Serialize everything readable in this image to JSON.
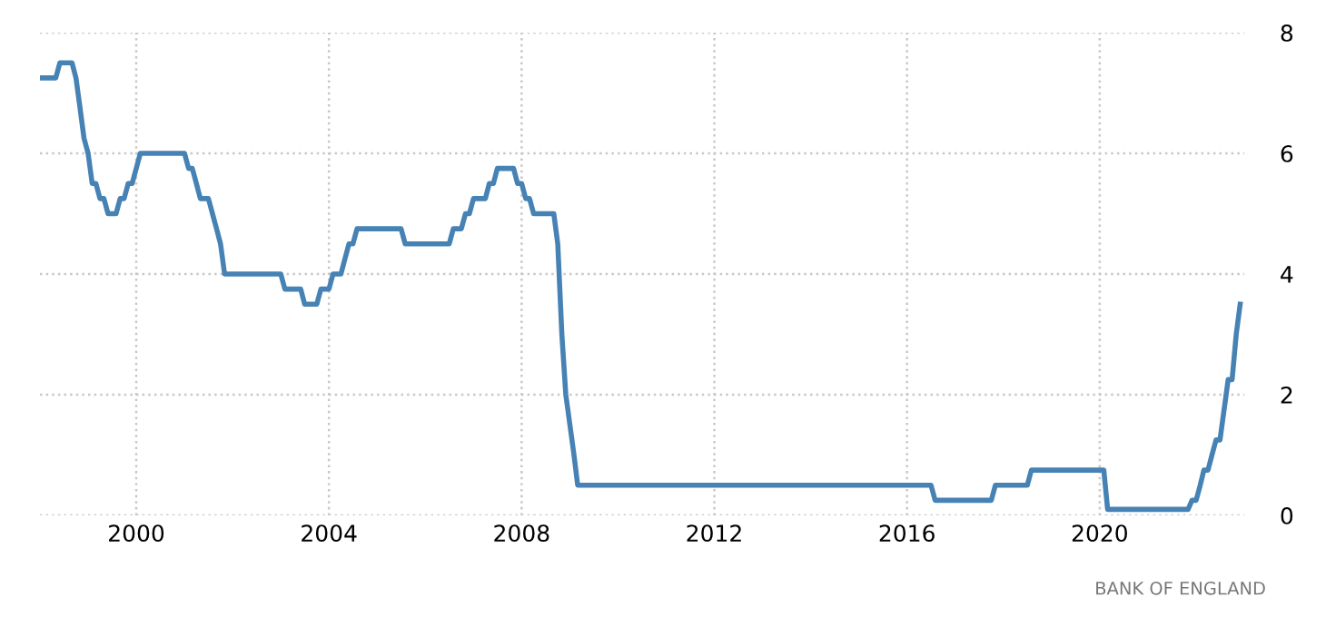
{
  "chart_data": {
    "type": "line",
    "x": [
      "1998-01",
      "1998-05",
      "1998-06",
      "1998-09",
      "1998-10",
      "1998-11",
      "1998-12",
      "1999-01",
      "1999-02",
      "1999-03",
      "1999-04",
      "1999-05",
      "1999-06",
      "1999-08",
      "1999-09",
      "1999-10",
      "1999-11",
      "1999-12",
      "2000-01",
      "2000-02",
      "2001-01",
      "2001-02",
      "2001-03",
      "2001-04",
      "2001-05",
      "2001-07",
      "2001-08",
      "2001-09",
      "2001-10",
      "2001-11",
      "2003-01",
      "2003-02",
      "2003-06",
      "2003-07",
      "2003-10",
      "2003-11",
      "2004-01",
      "2004-02",
      "2004-04",
      "2004-05",
      "2004-06",
      "2004-07",
      "2004-08",
      "2005-07",
      "2005-08",
      "2006-07",
      "2006-08",
      "2006-10",
      "2006-11",
      "2006-12",
      "2007-01",
      "2007-04",
      "2007-05",
      "2007-06",
      "2007-07",
      "2007-11",
      "2007-12",
      "2008-01",
      "2008-02",
      "2008-03",
      "2008-04",
      "2008-09",
      "2008-10",
      "2008-11",
      "2008-12",
      "2009-01",
      "2009-02",
      "2009-03",
      "2016-07",
      "2016-08",
      "2017-10",
      "2017-11",
      "2018-07",
      "2018-08",
      "2020-02",
      "2020-03",
      "2021-11",
      "2021-12",
      "2022-01",
      "2022-02",
      "2022-03",
      "2022-04",
      "2022-05",
      "2022-06",
      "2022-07",
      "2022-08",
      "2022-09",
      "2022-10",
      "2022-11",
      "2022-12"
    ],
    "series": [
      {
        "color": "#4682b4",
        "values": [
          7.25,
          7.25,
          7.5,
          7.5,
          7.25,
          6.75,
          6.25,
          6.0,
          5.5,
          5.5,
          5.25,
          5.25,
          5.0,
          5.0,
          5.25,
          5.25,
          5.5,
          5.5,
          5.75,
          6.0,
          6.0,
          5.75,
          5.75,
          5.5,
          5.25,
          5.25,
          5.0,
          4.75,
          4.5,
          4.0,
          4.0,
          3.75,
          3.75,
          3.5,
          3.5,
          3.75,
          3.75,
          4.0,
          4.0,
          4.25,
          4.5,
          4.5,
          4.75,
          4.75,
          4.5,
          4.5,
          4.75,
          4.75,
          5.0,
          5.0,
          5.25,
          5.25,
          5.5,
          5.5,
          5.75,
          5.75,
          5.5,
          5.5,
          5.25,
          5.25,
          5.0,
          5.0,
          4.5,
          3.0,
          2.0,
          1.5,
          1.0,
          0.5,
          0.5,
          0.25,
          0.25,
          0.5,
          0.5,
          0.75,
          0.75,
          0.1,
          0.1,
          0.25,
          0.25,
          0.5,
          0.75,
          0.75,
          1.0,
          1.25,
          1.25,
          1.75,
          2.25,
          2.25,
          3.0,
          3.5
        ]
      }
    ],
    "xlim": [
      "1998-01",
      "2023-01"
    ],
    "xticks": [
      "2000",
      "2004",
      "2008",
      "2012",
      "2016",
      "2020"
    ],
    "ylim": [
      0,
      8
    ],
    "yticks": [
      0,
      2,
      4,
      6,
      8
    ],
    "grid": true,
    "line_style": "solid",
    "annotations": [
      "BANK OF ENGLAND"
    ]
  }
}
